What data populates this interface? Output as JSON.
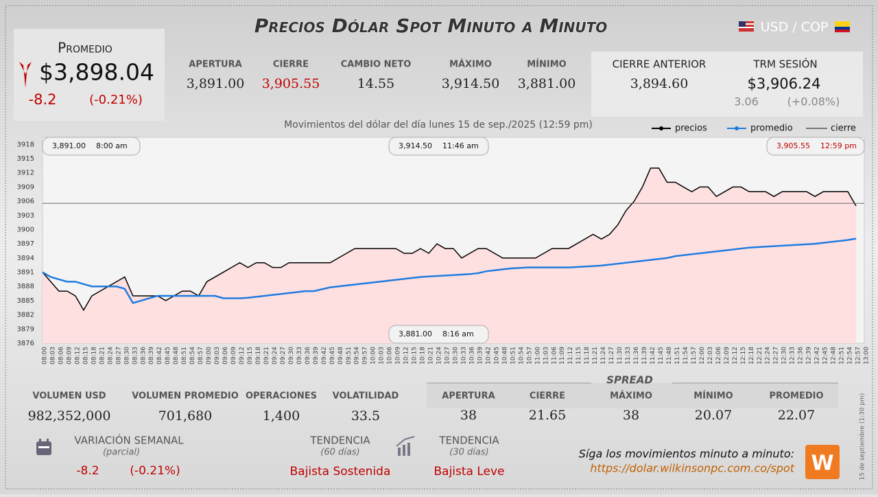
{
  "header": {
    "title": "Precios Dólar Spot Minuto a Minuto",
    "pair": "USD / COP"
  },
  "promedio": {
    "label": "Promedio",
    "value": "$3,898.04",
    "change": "-8.2",
    "change_pct": "(-0.21%)"
  },
  "stats": [
    {
      "label": "APERTURA",
      "value": "3,891.00"
    },
    {
      "label": "CIERRE",
      "value": "3,905.55"
    },
    {
      "label": "CAMBIO NETO",
      "value": "14.55"
    },
    {
      "label": "MÁXIMO",
      "value": "3,914.50"
    },
    {
      "label": "MÍNIMO",
      "value": "3,881.00"
    }
  ],
  "previous": {
    "label": "CIERRE ANTERIOR",
    "value": "3,894.60"
  },
  "trm": {
    "label": "TRM SESIÓN",
    "value": "$3,906.24",
    "change": "3.06",
    "change_pct": "(+0.08%)"
  },
  "volume": [
    {
      "label": "VOLUMEN USD",
      "value": "982,352,000"
    },
    {
      "label": "VOLUMEN PROMEDIO",
      "value": "701,680"
    },
    {
      "label": "OPERACIONES",
      "value": "1,400"
    },
    {
      "label": "VOLATILIDAD",
      "value": "33.5"
    }
  ],
  "spread": {
    "title": "SPREAD",
    "items": [
      {
        "label": "APERTURA",
        "value": "38"
      },
      {
        "label": "CIERRE",
        "value": "21.65"
      },
      {
        "label": "MÁXIMO",
        "value": "38"
      },
      {
        "label": "MÍNIMO",
        "value": "20.07"
      },
      {
        "label": "PROMEDIO",
        "value": "22.07"
      }
    ]
  },
  "weekly": {
    "label": "VARIACIÓN SEMANAL",
    "note": "(parcial)",
    "change": "-8.2",
    "change_pct": "(-0.21%)"
  },
  "trends": [
    {
      "label": "TENDENCIA",
      "period": "(60 días)",
      "value": "Bajista Sostenida"
    },
    {
      "label": "TENDENCIA",
      "period": "(30 días)",
      "value": "Bajista Leve"
    }
  ],
  "footer": {
    "text": "Síga los movimientos minuto a minuto:",
    "link": "https://dolar.wilkinsonpc.com.co/spot",
    "stamp": "15 de septiembre (1:30 pm)"
  },
  "chart_data": {
    "type": "line",
    "title": "Movimientos del dólar del día lunes 15 de sep./2025 (12:59 pm)",
    "categories": [
      "08:00",
      "08:03",
      "08:06",
      "08:09",
      "08:12",
      "08:15",
      "08:18",
      "08:21",
      "08:24",
      "08:27",
      "08:30",
      "08:33",
      "08:36",
      "08:39",
      "08:42",
      "08:45",
      "08:48",
      "08:51",
      "08:54",
      "08:57",
      "09:00",
      "09:03",
      "09:06",
      "09:09",
      "09:12",
      "09:15",
      "09:18",
      "09:21",
      "09:24",
      "09:27",
      "09:30",
      "09:33",
      "09:36",
      "09:39",
      "09:42",
      "09:45",
      "09:48",
      "09:51",
      "09:54",
      "09:57",
      "10:00",
      "10:03",
      "10:06",
      "10:09",
      "10:12",
      "10:15",
      "10:18",
      "10:21",
      "10:24",
      "10:27",
      "10:30",
      "10:33",
      "10:36",
      "10:39",
      "10:42",
      "10:45",
      "10:48",
      "10:51",
      "10:54",
      "10:57",
      "11:00",
      "11:03",
      "11:06",
      "11:09",
      "11:12",
      "11:15",
      "11:18",
      "11:21",
      "11:24",
      "11:27",
      "11:30",
      "11:33",
      "11:36",
      "11:39",
      "11:42",
      "11:45",
      "11:48",
      "11:51",
      "11:54",
      "11:57",
      "12:00",
      "12:03",
      "12:06",
      "12:09",
      "12:12",
      "12:15",
      "12:18",
      "12:21",
      "12:24",
      "12:27",
      "12:30",
      "12:33",
      "12:36",
      "12:39",
      "12:42",
      "12:45",
      "12:48",
      "12:51",
      "12:54",
      "12:57",
      "13:00"
    ],
    "series": [
      {
        "name": "precios",
        "color": "#000000",
        "fill": "#ffe0e0",
        "values": [
          3891,
          3889,
          3887,
          3887,
          3886,
          3883,
          3886,
          3887,
          3888,
          3889,
          3890,
          3886,
          3886,
          3886,
          3886,
          3885,
          3886,
          3887,
          3887,
          3886,
          3889,
          3890,
          3891,
          3892,
          3893,
          3892,
          3893,
          3893,
          3892,
          3892,
          3893,
          3893,
          3893,
          3893,
          3893,
          3893,
          3894,
          3895,
          3896,
          3896,
          3896,
          3896,
          3896,
          3896,
          3895,
          3895,
          3896,
          3895,
          3897,
          3896,
          3896,
          3894,
          3895,
          3896,
          3896,
          3895,
          3894,
          3894,
          3894,
          3894,
          3894,
          3895,
          3896,
          3896,
          3896,
          3897,
          3898,
          3899,
          3898,
          3899,
          3901,
          3904,
          3906,
          3909,
          3913,
          3913,
          3910,
          3910,
          3909,
          3908,
          3909,
          3909,
          3907,
          3908,
          3909,
          3909,
          3908,
          3908,
          3908,
          3907,
          3908,
          3908,
          3908,
          3908,
          3907,
          3908,
          3908,
          3908,
          3908,
          3905,
          null
        ]
      },
      {
        "name": "promedio",
        "color": "#1e7be0",
        "values": [
          3891,
          3890,
          3889.5,
          3889,
          3889,
          3888.5,
          3888,
          3888,
          3888,
          3888,
          3887.5,
          3884.5,
          3885,
          3885.5,
          3886,
          3886,
          3886,
          3886,
          3886,
          3886,
          3886,
          3886,
          3885.5,
          3885.5,
          3885.5,
          3885.6,
          3885.8,
          3886,
          3886.2,
          3886.4,
          3886.6,
          3886.8,
          3887,
          3887,
          3887.4,
          3887.8,
          3888,
          3888.2,
          3888.4,
          3888.6,
          3888.8,
          3889,
          3889.2,
          3889.4,
          3889.6,
          3889.8,
          3890,
          3890.1,
          3890.2,
          3890.3,
          3890.4,
          3890.5,
          3890.6,
          3890.8,
          3891.2,
          3891.4,
          3891.6,
          3891.8,
          3891.9,
          3892,
          3892,
          3892,
          3892,
          3892,
          3892,
          3892.1,
          3892.2,
          3892.3,
          3892.4,
          3892.6,
          3892.8,
          3893,
          3893.2,
          3893.4,
          3893.6,
          3893.8,
          3894,
          3894.4,
          3894.6,
          3894.8,
          3895,
          3895.2,
          3895.4,
          3895.6,
          3895.8,
          3896,
          3896.2,
          3896.3,
          3896.4,
          3896.5,
          3896.6,
          3896.7,
          3896.8,
          3896.9,
          3897,
          3897.2,
          3897.4,
          3897.6,
          3897.8,
          3898.1,
          null
        ]
      }
    ],
    "reference_line": {
      "name": "cierre",
      "value": 3905.55,
      "color": "#555555"
    },
    "annotations": [
      {
        "value": "3,891.00",
        "time": "8:00 am"
      },
      {
        "value": "3,914.50",
        "time": "11:46 am"
      },
      {
        "value": "3,905.55",
        "time": "12:59 pm",
        "color": "#c00000"
      },
      {
        "value": "3,881.00",
        "time": "8:16 am"
      }
    ],
    "ylim": [
      3876,
      3919.5
    ],
    "yticks": [
      3876,
      3879,
      3882,
      3885,
      3888,
      3891,
      3894,
      3897,
      3900,
      3903,
      3906,
      3909,
      3912,
      3915,
      3918
    ],
    "grid": false
  }
}
